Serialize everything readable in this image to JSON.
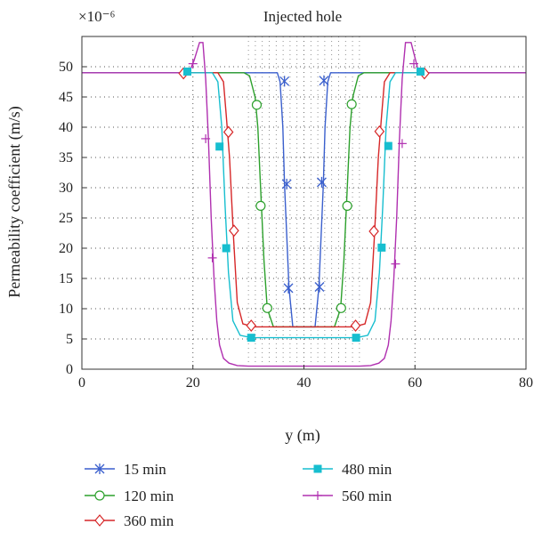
{
  "chart_data": {
    "type": "line",
    "title": "Injected hole",
    "xlabel": "y (m)",
    "ylabel": "Permeability coefficient (m/s)",
    "scale_label": "×10⁻⁶",
    "xlim": [
      0,
      80
    ],
    "ylim": [
      0,
      55
    ],
    "xticks": [
      0,
      20,
      40,
      60,
      80
    ],
    "yticks": [
      0,
      5,
      10,
      15,
      20,
      25,
      30,
      35,
      40,
      45,
      50
    ],
    "grid": "dotted",
    "legend_position": "below",
    "series": [
      {
        "name": "15 min",
        "color": "#3a5fcd",
        "marker": "star",
        "x": [
          0,
          19,
          30,
          35.2,
          35.7,
          36.2,
          36.5,
          37,
          37.3,
          38,
          42,
          42.7,
          43,
          43.5,
          43.8,
          44.3,
          44.8,
          50,
          61,
          80
        ],
        "y": [
          49,
          49,
          49,
          49,
          47.5,
          40,
          30.5,
          20,
          13.5,
          7,
          7,
          13.5,
          20,
          30.5,
          40,
          47.5,
          49,
          49,
          49,
          49
        ],
        "markers": [
          [
            36.5,
            47.6
          ],
          [
            36.9,
            30.6
          ],
          [
            37.2,
            13.4
          ],
          [
            42.8,
            13.6
          ],
          [
            43.2,
            30.9
          ],
          [
            43.6,
            47.7
          ]
        ]
      },
      {
        "name": "120 min",
        "color": "#2ca02c",
        "marker": "circle",
        "x": [
          0,
          19,
          29.2,
          30.2,
          31.2,
          31.7,
          32.2,
          32.8,
          33.4,
          34.5,
          45.5,
          46.6,
          47.2,
          47.8,
          48.3,
          48.8,
          49.8,
          50.8,
          61,
          80
        ],
        "y": [
          49,
          49,
          49,
          48.5,
          45,
          40,
          30,
          18,
          10,
          7,
          7,
          10,
          18,
          30,
          40,
          45,
          48.5,
          49,
          49,
          49
        ],
        "markers": [
          [
            31.5,
            43.7
          ],
          [
            32.2,
            27.0
          ],
          [
            33.4,
            10.1
          ],
          [
            46.7,
            10.1
          ],
          [
            47.8,
            27.0
          ],
          [
            48.6,
            43.8
          ]
        ]
      },
      {
        "name": "360 min",
        "color": "#d62728",
        "marker": "diamond",
        "x": [
          0,
          18,
          19.5,
          20.5,
          24.5,
          25.5,
          26,
          26.6,
          27.3,
          28,
          29,
          31,
          49,
          51,
          52,
          52.7,
          53.4,
          54,
          54.5,
          55.5,
          59.5,
          60.5,
          62,
          80
        ],
        "y": [
          49,
          49,
          49,
          49,
          49,
          47.5,
          42,
          35,
          22,
          11,
          7.5,
          7,
          7,
          7.5,
          11,
          22,
          35,
          42,
          47.5,
          49,
          49,
          49,
          49,
          49
        ],
        "markers": [
          [
            18.3,
            48.9
          ],
          [
            26.4,
            39.2
          ],
          [
            27.4,
            22.9
          ],
          [
            30.5,
            7.2
          ],
          [
            49.3,
            7.2
          ],
          [
            52.6,
            22.8
          ],
          [
            53.6,
            39.3
          ],
          [
            61.7,
            48.9
          ]
        ]
      },
      {
        "name": "480 min",
        "color": "#17becf",
        "marker": "square",
        "x": [
          0,
          19,
          23.5,
          24.5,
          25.2,
          25.8,
          26.4,
          27.2,
          28.5,
          30.5,
          49.5,
          51.5,
          52.8,
          53.6,
          54.2,
          54.8,
          55.5,
          56.5,
          61,
          80
        ],
        "y": [
          49,
          49,
          49,
          47.5,
          40,
          27,
          16,
          8,
          5.6,
          5.2,
          5.2,
          5.6,
          8,
          16,
          27,
          40,
          47.5,
          49,
          49,
          49
        ],
        "markers": [
          [
            19.0,
            49.2
          ],
          [
            24.8,
            36.8
          ],
          [
            26.0,
            20.0
          ],
          [
            30.5,
            5.2
          ],
          [
            49.4,
            5.2
          ],
          [
            54.0,
            20.1
          ],
          [
            55.2,
            36.9
          ],
          [
            61.0,
            49.2
          ]
        ]
      },
      {
        "name": "560 min",
        "color": "#b030b0",
        "marker": "plus",
        "x": [
          0,
          19.3,
          20.2,
          21.2,
          21.8,
          22.3,
          22.8,
          23.3,
          23.8,
          24.3,
          24.8,
          25.5,
          26.5,
          28,
          30,
          50,
          52,
          53.5,
          54.5,
          55.2,
          55.7,
          56.2,
          56.7,
          57.2,
          57.7,
          58.3,
          59.3,
          60.7,
          80
        ],
        "y": [
          49,
          49,
          51,
          54,
          54,
          48,
          38,
          25,
          15,
          8,
          4,
          1.8,
          1.0,
          0.6,
          0.5,
          0.5,
          0.6,
          1.0,
          1.8,
          4,
          8,
          15,
          25,
          38,
          48,
          54,
          54,
          49,
          49
        ],
        "markers": [
          [
            20.0,
            50.5
          ],
          [
            22.3,
            38.1
          ],
          [
            23.5,
            18.4
          ],
          [
            56.5,
            17.4
          ],
          [
            57.7,
            37.3
          ],
          [
            59.8,
            50.5
          ]
        ]
      }
    ]
  }
}
